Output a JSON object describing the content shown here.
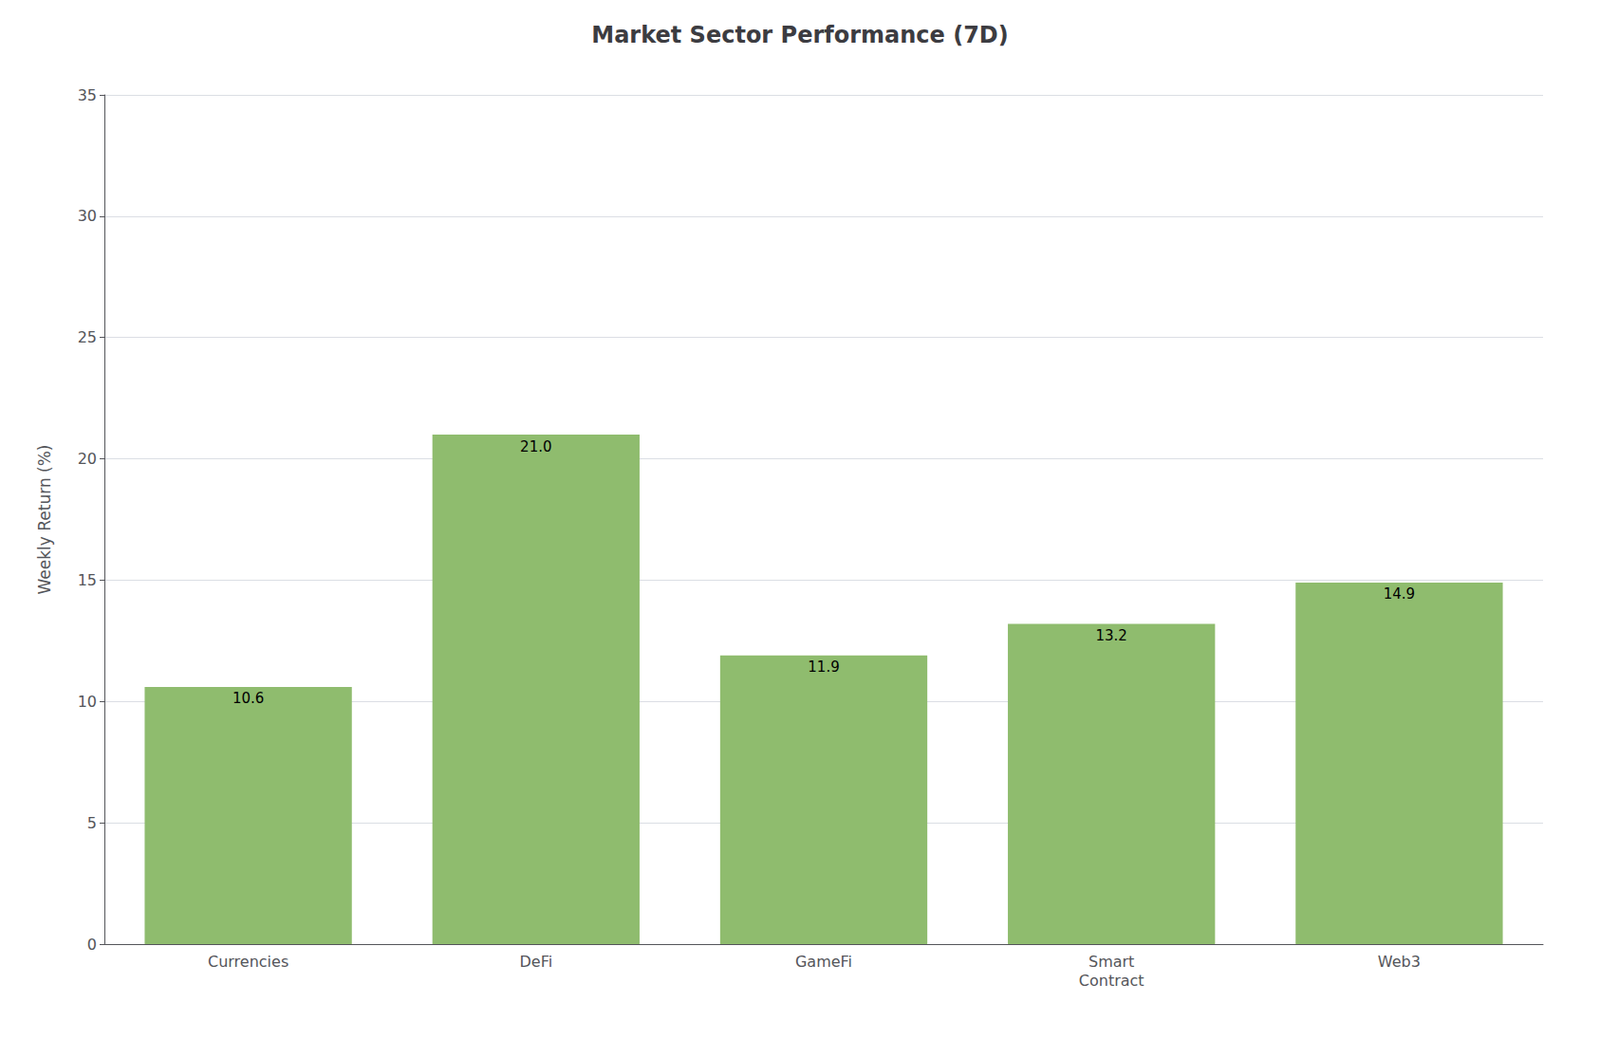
{
  "chart_data": {
    "type": "bar",
    "title": "Market Sector Performance (7D)",
    "categories": [
      "Currencies",
      "DeFi",
      "GameFi",
      "Smart\nContract",
      "Web3"
    ],
    "values": [
      10.6,
      21.0,
      11.9,
      13.2,
      14.9
    ],
    "value_labels": [
      "10.6",
      "21.0",
      "11.9",
      "13.2",
      "14.9"
    ],
    "data_labels": true,
    "color": "#8fbc6e",
    "ylabel": "Weekly Return (%)",
    "ylim": [
      0,
      35
    ],
    "yticks": [
      0,
      5,
      10,
      15,
      20,
      25,
      30,
      35
    ],
    "grid": true
  }
}
